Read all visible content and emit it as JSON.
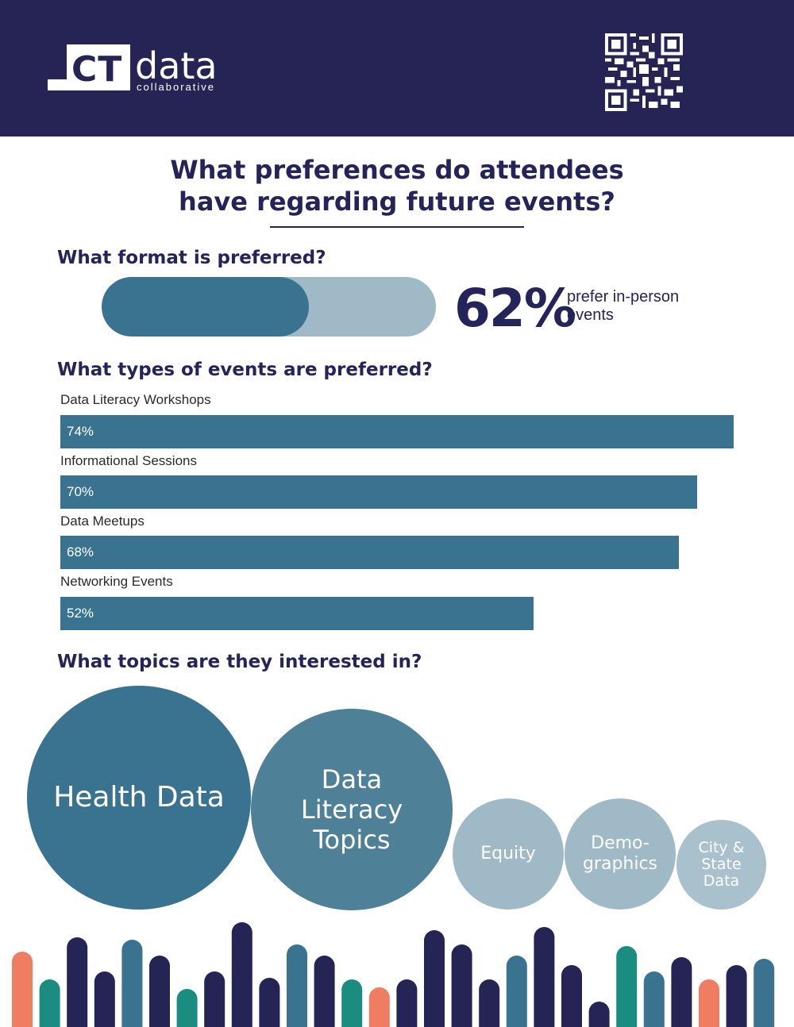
{
  "header": {
    "logo_ct": "CT",
    "logo_data": "data",
    "logo_collab": "collaborative",
    "qr_icon": "qr-code-icon"
  },
  "title": {
    "line1": "What preferences do attendees",
    "line2": "have regarding future events?"
  },
  "format": {
    "heading": "What format is preferred?",
    "value": 62,
    "value_label": "62%",
    "text_line1": "prefer in-person",
    "text_line2": "events"
  },
  "types": {
    "heading": "What types of events are preferred?",
    "items": [
      {
        "label": "Data Literacy Workshops",
        "value": 74,
        "value_label": "74%"
      },
      {
        "label": "Informational Sessions",
        "value": 70,
        "value_label": "70%"
      },
      {
        "label": "Data Meetups",
        "value": 68,
        "value_label": "68%"
      },
      {
        "label": "Networking Events",
        "value": 52,
        "value_label": "52%"
      }
    ]
  },
  "topics": {
    "heading": "What topics are they interested in?",
    "items": [
      {
        "lines": [
          "Health Data"
        ],
        "color": "#3a7390"
      },
      {
        "lines": [
          "Data",
          "Literacy",
          "Topics"
        ],
        "color": "#4e8198"
      },
      {
        "lines": [
          "Equity"
        ],
        "color": "#9fb9c6"
      },
      {
        "lines": [
          "Demo-",
          "graphics"
        ],
        "color": "#9fb9c6"
      },
      {
        "lines": [
          "City &",
          "State",
          "Data"
        ],
        "color": "#a9c1cd"
      }
    ]
  },
  "colors": {
    "navy": "#252455",
    "teal_dark": "#3a7390",
    "teal_light": "#9fb9c6",
    "green": "#1a8c80",
    "coral": "#ef7d62"
  }
}
